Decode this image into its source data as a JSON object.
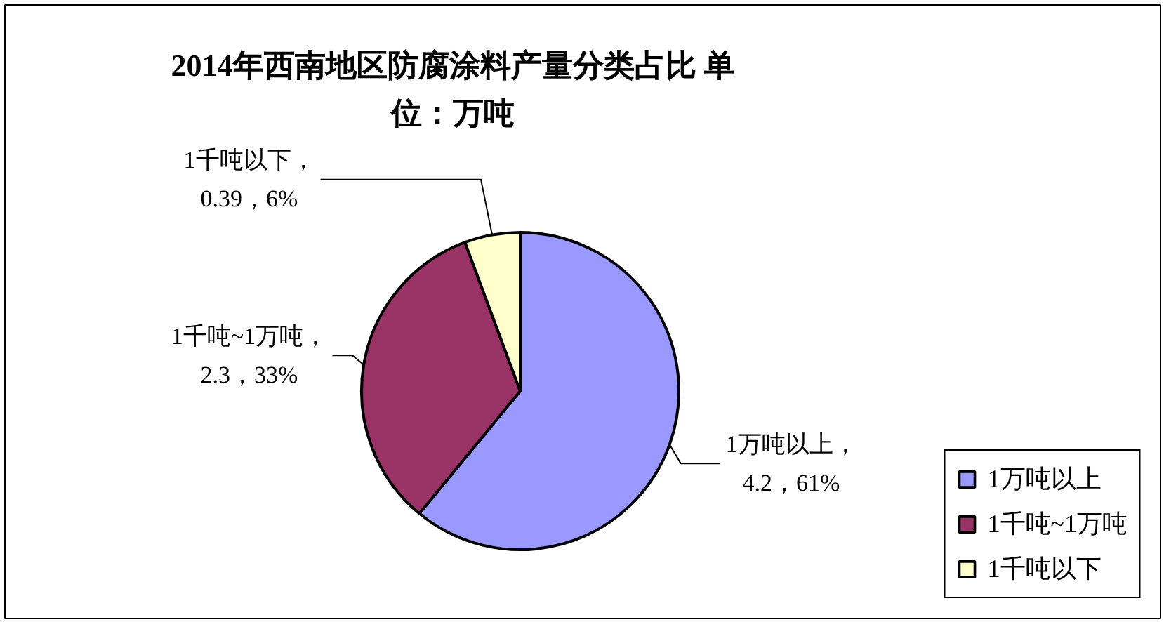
{
  "chart_data": {
    "type": "pie",
    "title": "2014年西南地区防腐涂料产量分类占比 单位：万吨",
    "categories": [
      "1万吨以上",
      "1千吨~1万吨",
      "1千吨以下"
    ],
    "values": [
      4.2,
      2.3,
      0.39
    ],
    "colors": [
      "#9999ff",
      "#993366",
      "#ffffcc"
    ],
    "value_labels": [
      "1万吨以上，\n4.2，61%",
      "1千吨~1万吨，\n2.3，33%",
      "1千吨以下，\n0.39，6%"
    ],
    "legend": "bottom right"
  }
}
